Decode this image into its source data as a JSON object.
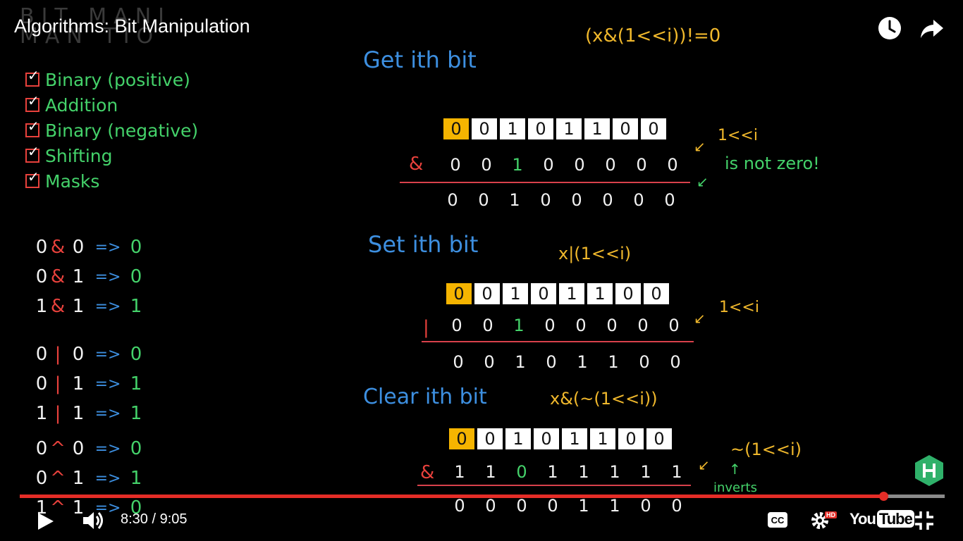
{
  "player": {
    "title": "Algorithms: Bit Manipulation",
    "current_time": "8:30",
    "separator": " / ",
    "duration": "9:05",
    "progress_fraction": 0.934,
    "quality_badge": "HD",
    "cc_label": "CC",
    "logo_you": "You",
    "logo_tube": "Tube",
    "accent_color": "#e52d27"
  },
  "icons": {
    "watch_later": "clock-icon",
    "share": "share-arrow-icon",
    "play": "play-icon",
    "volume": "volume-icon",
    "captions": "cc-icon",
    "settings": "gear-icon",
    "exit_fullscreen": "exit-fullscreen-icon",
    "channel_logo": "hexagon-h-logo"
  },
  "board": {
    "watermark": [
      "BIT MANI",
      "MAN TIO"
    ],
    "checklist": [
      "Binary (positive)",
      "Addition",
      "Binary (negative)",
      "Shifting",
      "Masks"
    ],
    "and_table": [
      {
        "a": "0",
        "op": "&",
        "b": "0",
        "arrow": "=>",
        "res": "0"
      },
      {
        "a": "0",
        "op": "&",
        "b": "1",
        "arrow": "=>",
        "res": "0"
      },
      {
        "a": "1",
        "op": "&",
        "b": "1",
        "arrow": "=>",
        "res": "1"
      }
    ],
    "or_table": [
      {
        "a": "0",
        "op": "|",
        "b": "0",
        "arrow": "=>",
        "res": "0"
      },
      {
        "a": "0",
        "op": "|",
        "b": "1",
        "arrow": "=>",
        "res": "1"
      },
      {
        "a": "1",
        "op": "|",
        "b": "1",
        "arrow": "=>",
        "res": "1"
      }
    ],
    "xor_table": [
      {
        "a": "0",
        "op": "^",
        "b": "0",
        "arrow": "=>",
        "res": "0"
      },
      {
        "a": "0",
        "op": "^",
        "b": "1",
        "arrow": "=>",
        "res": "1"
      },
      {
        "a": "1",
        "op": "^",
        "b": "1",
        "arrow": "=>",
        "res": "0"
      }
    ],
    "get": {
      "heading": "Get ith bit",
      "formula": "(x&(1<<i))!=0",
      "op": "&",
      "bits": [
        "0",
        "0",
        "1",
        "0",
        "1",
        "1",
        "0",
        "0"
      ],
      "mask": [
        "0",
        "0",
        "1",
        "0",
        "0",
        "0",
        "0",
        "0"
      ],
      "result": [
        "0",
        "0",
        "1",
        "0",
        "0",
        "0",
        "0",
        "0"
      ],
      "note_shift": "1<<i",
      "note_nonzero": "is not zero!"
    },
    "set": {
      "heading": "Set ith bit",
      "formula": "x|(1<<i)",
      "op": "|",
      "bits": [
        "0",
        "0",
        "1",
        "0",
        "1",
        "1",
        "0",
        "0"
      ],
      "mask": [
        "0",
        "0",
        "1",
        "0",
        "0",
        "0",
        "0",
        "0"
      ],
      "result": [
        "0",
        "0",
        "1",
        "0",
        "1",
        "1",
        "0",
        "0"
      ],
      "note_shift": "1<<i"
    },
    "clear": {
      "heading": "Clear ith bit",
      "formula": "x&(~(1<<i))",
      "op": "&",
      "bits": [
        "0",
        "0",
        "1",
        "0",
        "1",
        "1",
        "0",
        "0"
      ],
      "mask": [
        "1",
        "1",
        "0",
        "1",
        "1",
        "1",
        "1",
        "1"
      ],
      "result": [
        "0",
        "0",
        "0",
        "0",
        "1",
        "1",
        "0",
        "0"
      ],
      "note_shift": "~(1<<i)",
      "note_inverts": "inverts"
    }
  }
}
